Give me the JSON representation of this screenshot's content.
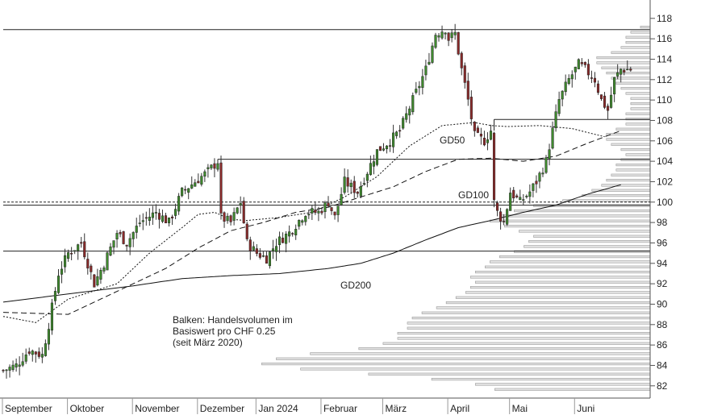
{
  "chart_data": {
    "type": "candlestick",
    "y_ticks": [
      82,
      84,
      86,
      88,
      90,
      92,
      94,
      96,
      98,
      100,
      102,
      104,
      106,
      108,
      110,
      112,
      114,
      116,
      118
    ],
    "ylim": [
      80.8,
      119.8
    ],
    "months": [
      "September",
      "Oktober",
      "November",
      "Dezember",
      "Jan 2024",
      "Februar",
      "März",
      "April",
      "Mai",
      "Juni"
    ],
    "month_starts": [
      0,
      20,
      40,
      60,
      78,
      98,
      117,
      137,
      156,
      176
    ],
    "n_sessions": 194,
    "annotation": {
      "line1": "Balken: Handelsvolumen im",
      "line2": "Basiswert pro CHF 0.25",
      "line3": "(seit März 2020)"
    },
    "ma_labels": {
      "gd50": "GD50",
      "gd100": "GD100",
      "gd200": "GD200"
    },
    "horizontal_levels": [
      {
        "y": 116.9,
        "from": 0,
        "style": "solid"
      },
      {
        "y": 108.1,
        "from": 151,
        "style": "solid"
      },
      {
        "y": 104.2,
        "from": 66,
        "style": "solid"
      },
      {
        "y": 100.0,
        "from": 0,
        "style": "dashed"
      },
      {
        "y": 99.7,
        "from": 0,
        "style": "solid"
      },
      {
        "y": 95.2,
        "from": 0,
        "style": "solid"
      }
    ],
    "close_anchors": [
      [
        0,
        83.5
      ],
      [
        4,
        84
      ],
      [
        8,
        85.5
      ],
      [
        12,
        85
      ],
      [
        14,
        88
      ],
      [
        17,
        93
      ],
      [
        20,
        95
      ],
      [
        24,
        96
      ],
      [
        28,
        92
      ],
      [
        31,
        94
      ],
      [
        35,
        97
      ],
      [
        38,
        96
      ],
      [
        42,
        98
      ],
      [
        47,
        99
      ],
      [
        51,
        98
      ],
      [
        55,
        101
      ],
      [
        59,
        102
      ],
      [
        63,
        103
      ],
      [
        66,
        104
      ],
      [
        67,
        98.5
      ],
      [
        70,
        98
      ],
      [
        73,
        100
      ],
      [
        75,
        96
      ],
      [
        78,
        95
      ],
      [
        81,
        94.5
      ],
      [
        84,
        96
      ],
      [
        88,
        97
      ],
      [
        93,
        99
      ],
      [
        97,
        99
      ],
      [
        100,
        100
      ],
      [
        102,
        98.5
      ],
      [
        105,
        102
      ],
      [
        109,
        101
      ],
      [
        112,
        103
      ],
      [
        115,
        105
      ],
      [
        119,
        106
      ],
      [
        122,
        107
      ],
      [
        126,
        110
      ],
      [
        130,
        113
      ],
      [
        133,
        116.5
      ],
      [
        136,
        117
      ],
      [
        137,
        116
      ],
      [
        139,
        116.5
      ],
      [
        141,
        113
      ],
      [
        143,
        110
      ],
      [
        145,
        106.5
      ],
      [
        148,
        106
      ],
      [
        150,
        107
      ],
      [
        151,
        100
      ],
      [
        152,
        99
      ],
      [
        154,
        98
      ],
      [
        156,
        101
      ],
      [
        159,
        100
      ],
      [
        162,
        101
      ],
      [
        164,
        102
      ],
      [
        167,
        104
      ],
      [
        169,
        107
      ],
      [
        171,
        110
      ],
      [
        174,
        112
      ],
      [
        177,
        113.5
      ],
      [
        179,
        113
      ],
      [
        182,
        112
      ],
      [
        184,
        110
      ],
      [
        186,
        109
      ],
      [
        188,
        112
      ],
      [
        190,
        113
      ]
    ],
    "gd50": [
      [
        0,
        88.8
      ],
      [
        10,
        88.2
      ],
      [
        20,
        90.5
      ],
      [
        35,
        92
      ],
      [
        45,
        95
      ],
      [
        55,
        97.5
      ],
      [
        60,
        98.8
      ],
      [
        65,
        99
      ],
      [
        70,
        98.3
      ],
      [
        75,
        98.2
      ],
      [
        85,
        98.5
      ],
      [
        95,
        99
      ],
      [
        105,
        100.5
      ],
      [
        115,
        102.5
      ],
      [
        125,
        105.5
      ],
      [
        135,
        107.5
      ],
      [
        145,
        107.8
      ],
      [
        150,
        107.5
      ],
      [
        155,
        107.4
      ],
      [
        165,
        107.5
      ],
      [
        175,
        107.2
      ],
      [
        180,
        106.8
      ],
      [
        185,
        106.4
      ]
    ],
    "gd100": [
      [
        0,
        89.2
      ],
      [
        20,
        89
      ],
      [
        30,
        90.5
      ],
      [
        40,
        92
      ],
      [
        50,
        93.5
      ],
      [
        60,
        95.5
      ],
      [
        70,
        97.2
      ],
      [
        80,
        98
      ],
      [
        90,
        99
      ],
      [
        100,
        99.5
      ],
      [
        110,
        100.5
      ],
      [
        120,
        101.5
      ],
      [
        130,
        103
      ],
      [
        140,
        104.2
      ],
      [
        150,
        104.3
      ],
      [
        160,
        104
      ],
      [
        170,
        104.5
      ],
      [
        180,
        105.8
      ],
      [
        190,
        107
      ]
    ],
    "gd200": [
      [
        0,
        90.2
      ],
      [
        20,
        91
      ],
      [
        40,
        91.8
      ],
      [
        55,
        92.5
      ],
      [
        70,
        92.8
      ],
      [
        85,
        93
      ],
      [
        100,
        93.5
      ],
      [
        110,
        94
      ],
      [
        120,
        95
      ],
      [
        130,
        96.3
      ],
      [
        140,
        97.5
      ],
      [
        150,
        98.2
      ],
      [
        160,
        99
      ],
      [
        170,
        99.7
      ],
      [
        180,
        100.8
      ],
      [
        190,
        101.7
      ]
    ],
    "volume_profile": [
      [
        81.5,
        0.32
      ],
      [
        82,
        0.36
      ],
      [
        82.5,
        0.45
      ],
      [
        83,
        0.58
      ],
      [
        83.5,
        0.72
      ],
      [
        84,
        0.8
      ],
      [
        84.5,
        0.77
      ],
      [
        85,
        0.7
      ],
      [
        85.5,
        0.6
      ],
      [
        86,
        0.55
      ],
      [
        86.5,
        0.52
      ],
      [
        87,
        0.52
      ],
      [
        87.5,
        0.5
      ],
      [
        88,
        0.5
      ],
      [
        88.5,
        0.49
      ],
      [
        89,
        0.47
      ],
      [
        89.5,
        0.44
      ],
      [
        90,
        0.42
      ],
      [
        90.5,
        0.4
      ],
      [
        91,
        0.38
      ],
      [
        91.5,
        0.37
      ],
      [
        92,
        0.36
      ],
      [
        92.5,
        0.37
      ],
      [
        93,
        0.36
      ],
      [
        93.5,
        0.34
      ],
      [
        94,
        0.33
      ],
      [
        94.5,
        0.31
      ],
      [
        95,
        0.28
      ],
      [
        95.5,
        0.26
      ],
      [
        96,
        0.25
      ],
      [
        96.5,
        0.24
      ],
      [
        97,
        0.27
      ],
      [
        97.5,
        0.3
      ],
      [
        98,
        0.33
      ],
      [
        98.5,
        0.31
      ],
      [
        99,
        0.28
      ],
      [
        99.5,
        0.24
      ],
      [
        100,
        0.18
      ],
      [
        100.5,
        0.14
      ],
      [
        101,
        0.12
      ],
      [
        101.5,
        0.1
      ],
      [
        102,
        0.09
      ],
      [
        102.5,
        0.08
      ],
      [
        103,
        0.07
      ],
      [
        103.5,
        0.07
      ],
      [
        104,
        0.06
      ],
      [
        104.5,
        0.05
      ],
      [
        105,
        0.06
      ],
      [
        105.5,
        0.08
      ],
      [
        106,
        0.09
      ],
      [
        106.5,
        0.09
      ],
      [
        107,
        0.07
      ],
      [
        107.5,
        0.05
      ],
      [
        108,
        0.05
      ],
      [
        108.5,
        0.05
      ],
      [
        109,
        0.04
      ],
      [
        109.5,
        0.04
      ],
      [
        110,
        0.04
      ],
      [
        110.5,
        0.05
      ],
      [
        111,
        0.06
      ],
      [
        111.5,
        0.07
      ],
      [
        112,
        0.08
      ],
      [
        112.5,
        0.09
      ],
      [
        113,
        0.1
      ],
      [
        113.5,
        0.11
      ],
      [
        114,
        0.11
      ],
      [
        114.5,
        0.08
      ],
      [
        115,
        0.06
      ],
      [
        115.5,
        0.05
      ],
      [
        116,
        0.05
      ],
      [
        116.5,
        0.04
      ],
      [
        117,
        0.02
      ]
    ]
  }
}
